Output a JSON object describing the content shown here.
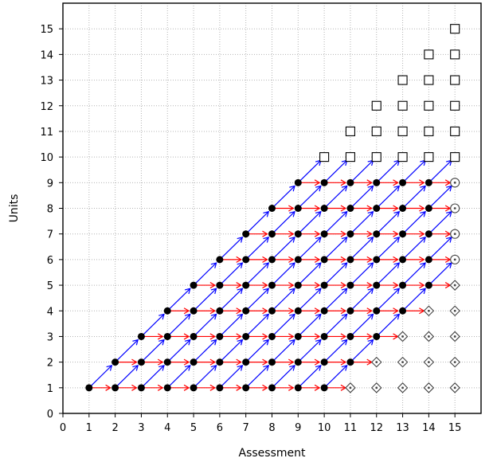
{
  "chart_data": {
    "type": "scatter",
    "title": "",
    "xlabel": "Assessment",
    "ylabel": "Units",
    "xlim": [
      0,
      16
    ],
    "ylim": [
      0,
      16
    ],
    "x_ticks": [
      0,
      1,
      2,
      3,
      4,
      5,
      6,
      7,
      8,
      9,
      10,
      11,
      12,
      13,
      14,
      15
    ],
    "y_ticks": [
      0,
      1,
      2,
      3,
      4,
      5,
      6,
      7,
      8,
      9,
      10,
      11,
      12,
      13,
      14,
      15
    ],
    "grid": true,
    "colors": {
      "filled_point": "#000000",
      "horizontal_arrow": "#ff0000",
      "diagonal_arrow": "#0000ff",
      "open_marker": "#444444",
      "grid": "#b4b4b4"
    },
    "series": [
      {
        "marker": "filled-circle",
        "rule": "points with y <= x and y <= 9 and x <= 14, plus x = 10 for y <= 9",
        "points": "x from 1 to 14 (or 10 / 15), y from 1 to min(x, 9)"
      },
      {
        "marker": "open-square",
        "points": [
          [
            10,
            10
          ],
          [
            11,
            10
          ],
          [
            12,
            10
          ],
          [
            13,
            10
          ],
          [
            14,
            10
          ],
          [
            15,
            10
          ],
          [
            11,
            11
          ],
          [
            12,
            11
          ],
          [
            13,
            11
          ],
          [
            14,
            11
          ],
          [
            15,
            11
          ],
          [
            12,
            12
          ],
          [
            13,
            12
          ],
          [
            14,
            12
          ],
          [
            15,
            12
          ],
          [
            13,
            13
          ],
          [
            14,
            13
          ],
          [
            15,
            13
          ],
          [
            14,
            14
          ],
          [
            15,
            14
          ],
          [
            15,
            15
          ]
        ]
      },
      {
        "marker": "open-circle-dot",
        "points": [
          [
            15,
            6
          ],
          [
            15,
            7
          ],
          [
            15,
            8
          ],
          [
            15,
            9
          ]
        ]
      },
      {
        "marker": "open-diamond-dot",
        "points": [
          [
            11,
            1
          ],
          [
            12,
            1
          ],
          [
            13,
            1
          ],
          [
            14,
            1
          ],
          [
            15,
            1
          ],
          [
            12,
            2
          ],
          [
            13,
            2
          ],
          [
            14,
            2
          ],
          [
            15,
            2
          ],
          [
            13,
            3
          ],
          [
            14,
            3
          ],
          [
            15,
            3
          ],
          [
            14,
            4
          ],
          [
            15,
            4
          ],
          [
            15,
            5
          ]
        ]
      },
      {
        "marker": "arrow-horizontal",
        "description": "from each filled point (x,y) to (x+1,y)"
      },
      {
        "marker": "arrow-diagonal",
        "description": "from each filled point (x,y) to (x+1,y+1)"
      }
    ]
  }
}
